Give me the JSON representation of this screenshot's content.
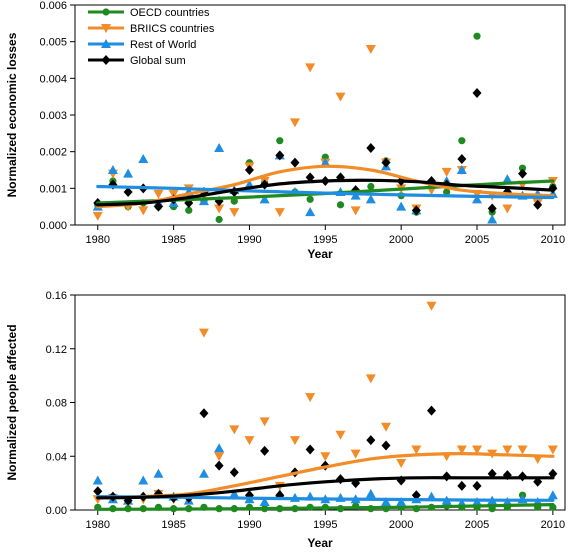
{
  "colors": {
    "oecd": "#1f8a1f",
    "briics": "#f28c28",
    "row": "#1f8ee0",
    "global": "#000000"
  },
  "chart_data": [
    {
      "type": "scatter",
      "xlabel": "Year",
      "ylabel": "Normalized economic losses",
      "xlim": [
        1978.5,
        2010.8
      ],
      "ylim": [
        0,
        0.006
      ],
      "xticks": [
        "1980",
        "1985",
        "1990",
        "1995",
        "2000",
        "2005",
        "2010"
      ],
      "yticks": [
        "0.000",
        "0.001",
        "0.002",
        "0.003",
        "0.004",
        "0.005",
        "0.006"
      ],
      "legend": "top-left",
      "series": [
        {
          "name": "OECD countries",
          "key": "oecd",
          "marker": "circle",
          "x": [
            1980,
            1981,
            1982,
            1983,
            1984,
            1985,
            1986,
            1987,
            1988,
            1989,
            1990,
            1991,
            1992,
            1993,
            1994,
            1995,
            1996,
            1997,
            1998,
            1999,
            2000,
            2001,
            2002,
            2003,
            2004,
            2005,
            2006,
            2007,
            2008,
            2009,
            2010
          ],
          "y": [
            0.00055,
            0.0012,
            0.0005,
            0.0006,
            0.0005,
            0.0005,
            0.0004,
            0.00065,
            0.00015,
            0.00065,
            0.0017,
            0.00115,
            0.0023,
            0.0009,
            0.0007,
            0.00185,
            0.00055,
            0.0009,
            0.00105,
            0.00175,
            0.0008,
            0.00035,
            0.00105,
            0.0009,
            0.0023,
            0.00515,
            0.00035,
            0.0009,
            0.00155,
            0.0007,
            0.00105
          ],
          "trend": {
            "x": [
              1980,
              1985,
              1990,
              1995,
              2000,
              2005,
              2010
            ],
            "y": [
              0.0006,
              0.00068,
              0.00076,
              0.00086,
              0.00098,
              0.0011,
              0.0012
            ]
          }
        },
        {
          "name": "BRIICS countries",
          "key": "briics",
          "marker": "triangle-down",
          "x": [
            1980,
            1981,
            1982,
            1983,
            1984,
            1985,
            1986,
            1987,
            1988,
            1989,
            1990,
            1991,
            1992,
            1993,
            1994,
            1995,
            1996,
            1997,
            1998,
            1999,
            2000,
            2001,
            2002,
            2003,
            2004,
            2005,
            2006,
            2007,
            2008,
            2009,
            2010
          ],
          "y": [
            0.00025,
            0.0014,
            0.0005,
            0.0004,
            0.00085,
            0.00085,
            0.001,
            0.0008,
            0.00045,
            0.00035,
            0.0016,
            0.0012,
            0.00035,
            0.0028,
            0.0043,
            0.0017,
            0.0035,
            0.0004,
            0.0048,
            0.0017,
            0.001,
            0.00045,
            0.00095,
            0.00145,
            0.0015,
            0.00085,
            0.0008,
            0.00045,
            0.0011,
            0.0006,
            0.0012
          ],
          "trend": {
            "x": [
              1980,
              1983,
              1986,
              1989,
              1992,
              1995,
              1998,
              2001,
              2004,
              2007,
              2010
            ],
            "y": [
              0.0005,
              0.0006,
              0.00085,
              0.0011,
              0.00145,
              0.0016,
              0.0015,
              0.0012,
              0.00095,
              0.00085,
              0.0008
            ]
          }
        },
        {
          "name": "Rest of World",
          "key": "row",
          "marker": "triangle-up",
          "x": [
            1980,
            1981,
            1982,
            1983,
            1984,
            1985,
            1986,
            1987,
            1988,
            1989,
            1990,
            1991,
            1992,
            1993,
            1994,
            1995,
            1996,
            1997,
            1998,
            1999,
            2000,
            2001,
            2002,
            2003,
            2004,
            2005,
            2006,
            2007,
            2008,
            2009,
            2010
          ],
          "y": [
            0.0005,
            0.0015,
            0.0014,
            0.0018,
            0.0006,
            0.0006,
            0.0009,
            0.00065,
            0.0021,
            0.00095,
            0.0011,
            0.0007,
            0.0019,
            0.0009,
            0.00035,
            0.0017,
            0.0009,
            0.0008,
            0.0007,
            0.0016,
            0.0005,
            0.0004,
            0.0011,
            0.0012,
            0.0015,
            0.0007,
            0.00015,
            0.00125,
            0.0008,
            0.00085,
            0.00085
          ],
          "trend": {
            "x": [
              1980,
              1985,
              1990,
              1995,
              2000,
              2005,
              2010
            ],
            "y": [
              0.00105,
              0.001,
              0.00093,
              0.00087,
              0.00082,
              0.00078,
              0.00075
            ]
          }
        },
        {
          "name": "Global sum",
          "key": "global",
          "marker": "diamond",
          "x": [
            1980,
            1981,
            1982,
            1983,
            1984,
            1985,
            1986,
            1987,
            1988,
            1989,
            1990,
            1991,
            1992,
            1993,
            1994,
            1995,
            1996,
            1997,
            1998,
            1999,
            2000,
            2001,
            2002,
            2003,
            2004,
            2005,
            2006,
            2007,
            2008,
            2009,
            2010
          ],
          "y": [
            0.0006,
            0.0011,
            0.0009,
            0.001,
            0.0005,
            0.0007,
            0.0006,
            0.0009,
            0.00065,
            0.0009,
            0.0015,
            0.0011,
            0.0019,
            0.0017,
            0.0013,
            0.0012,
            0.0013,
            0.00095,
            0.0021,
            0.0017,
            0.0012,
            0.0004,
            0.0012,
            0.0011,
            0.0018,
            0.0036,
            0.00045,
            0.0009,
            0.0014,
            0.00055,
            0.001
          ],
          "trend": {
            "x": [
              1980,
              1983,
              1986,
              1989,
              1992,
              1995,
              1998,
              2001,
              2004,
              2007,
              2010
            ],
            "y": [
              0.00055,
              0.0006,
              0.00075,
              0.00095,
              0.00112,
              0.0012,
              0.00122,
              0.00118,
              0.00108,
              0.00102,
              0.00095
            ]
          }
        }
      ]
    },
    {
      "type": "scatter",
      "xlabel": "Year",
      "ylabel": "Normalized people affected",
      "xlim": [
        1978.5,
        2010.8
      ],
      "ylim": [
        0,
        0.16
      ],
      "xticks": [
        "1980",
        "1985",
        "1990",
        "1995",
        "2000",
        "2005",
        "2010"
      ],
      "yticks": [
        "0.00",
        "0.04",
        "0.08",
        "0.12",
        "0.16"
      ],
      "series": [
        {
          "key": "oecd",
          "marker": "circle",
          "x": [
            1980,
            1981,
            1982,
            1983,
            1984,
            1985,
            1986,
            1987,
            1988,
            1989,
            1990,
            1991,
            1992,
            1993,
            1994,
            1995,
            1996,
            1997,
            1998,
            1999,
            2000,
            2001,
            2002,
            2003,
            2004,
            2005,
            2006,
            2007,
            2008,
            2009,
            2010
          ],
          "y": [
            0.002,
            0.001,
            0.001,
            0.001,
            0.002,
            0.001,
            0.001,
            0.002,
            0.001,
            0.001,
            0.002,
            0.001,
            0.001,
            0.001,
            0.002,
            0.002,
            0.001,
            0.003,
            0.001,
            0.001,
            0.002,
            0.001,
            0.002,
            0.003,
            0.002,
            0.002,
            0.001,
            0.002,
            0.011,
            0.002,
            0.002
          ],
          "trend": {
            "x": [
              1980,
              1985,
              1990,
              1995,
              2000,
              2005,
              2010
            ],
            "y": [
              0.0005,
              0.0007,
              0.001,
              0.0015,
              0.002,
              0.003,
              0.004
            ]
          }
        },
        {
          "key": "briics",
          "marker": "triangle-down",
          "x": [
            1980,
            1981,
            1982,
            1983,
            1984,
            1985,
            1986,
            1987,
            1988,
            1989,
            1990,
            1991,
            1992,
            1993,
            1994,
            1995,
            1996,
            1997,
            1998,
            1999,
            2000,
            2001,
            2002,
            2003,
            2004,
            2005,
            2006,
            2007,
            2008,
            2009,
            2010
          ],
          "y": [
            0.008,
            0.009,
            0.007,
            0.008,
            0.012,
            0.008,
            0.01,
            0.132,
            0.04,
            0.06,
            0.052,
            0.066,
            0.018,
            0.052,
            0.084,
            0.04,
            0.056,
            0.042,
            0.098,
            0.062,
            0.035,
            0.045,
            0.152,
            0.04,
            0.045,
            0.045,
            0.042,
            0.045,
            0.045,
            0.038,
            0.045
          ],
          "trend": {
            "x": [
              1980,
              1983,
              1986,
              1989,
              1992,
              1995,
              1998,
              2001,
              2004,
              2007,
              2010
            ],
            "y": [
              0.009,
              0.01,
              0.012,
              0.018,
              0.025,
              0.032,
              0.038,
              0.041,
              0.042,
              0.041,
              0.04
            ]
          }
        },
        {
          "key": "row",
          "marker": "triangle-up",
          "x": [
            1980,
            1981,
            1982,
            1983,
            1984,
            1985,
            1986,
            1987,
            1988,
            1989,
            1990,
            1991,
            1992,
            1993,
            1994,
            1995,
            1996,
            1997,
            1998,
            1999,
            2000,
            2001,
            2002,
            2003,
            2004,
            2005,
            2006,
            2007,
            2008,
            2009,
            2010
          ],
          "y": [
            0.022,
            0.008,
            0.007,
            0.022,
            0.027,
            0.01,
            0.007,
            0.027,
            0.046,
            0.012,
            0.008,
            0.006,
            0.012,
            0.009,
            0.01,
            0.008,
            0.009,
            0.008,
            0.012,
            0.006,
            0.006,
            0.008,
            0.01,
            0.007,
            0.005,
            0.006,
            0.007,
            0.006,
            0.008,
            0.006,
            0.011
          ],
          "trend": {
            "x": [
              1980,
              1985,
              1990,
              1995,
              2000,
              2005,
              2010
            ],
            "y": [
              0.01,
              0.0095,
              0.0088,
              0.0082,
              0.0078,
              0.0074,
              0.0072
            ]
          }
        },
        {
          "key": "global",
          "marker": "diamond",
          "x": [
            1980,
            1981,
            1982,
            1983,
            1984,
            1985,
            1986,
            1987,
            1988,
            1989,
            1990,
            1991,
            1992,
            1993,
            1994,
            1995,
            1996,
            1997,
            1998,
            1999,
            2000,
            2001,
            2002,
            2003,
            2004,
            2005,
            2006,
            2007,
            2008,
            2009,
            2010
          ],
          "y": [
            0.014,
            0.01,
            0.007,
            0.01,
            0.012,
            0.009,
            0.009,
            0.072,
            0.033,
            0.028,
            0.011,
            0.044,
            0.011,
            0.028,
            0.045,
            0.033,
            0.023,
            0.02,
            0.052,
            0.048,
            0.022,
            0.011,
            0.074,
            0.025,
            0.018,
            0.018,
            0.027,
            0.026,
            0.025,
            0.021,
            0.027
          ],
          "trend": {
            "x": [
              1980,
              1983,
              1986,
              1989,
              1992,
              1995,
              1998,
              2001,
              2004,
              2007,
              2010
            ],
            "y": [
              0.009,
              0.0095,
              0.011,
              0.014,
              0.018,
              0.021,
              0.023,
              0.024,
              0.024,
              0.024,
              0.024
            ]
          }
        }
      ]
    }
  ]
}
